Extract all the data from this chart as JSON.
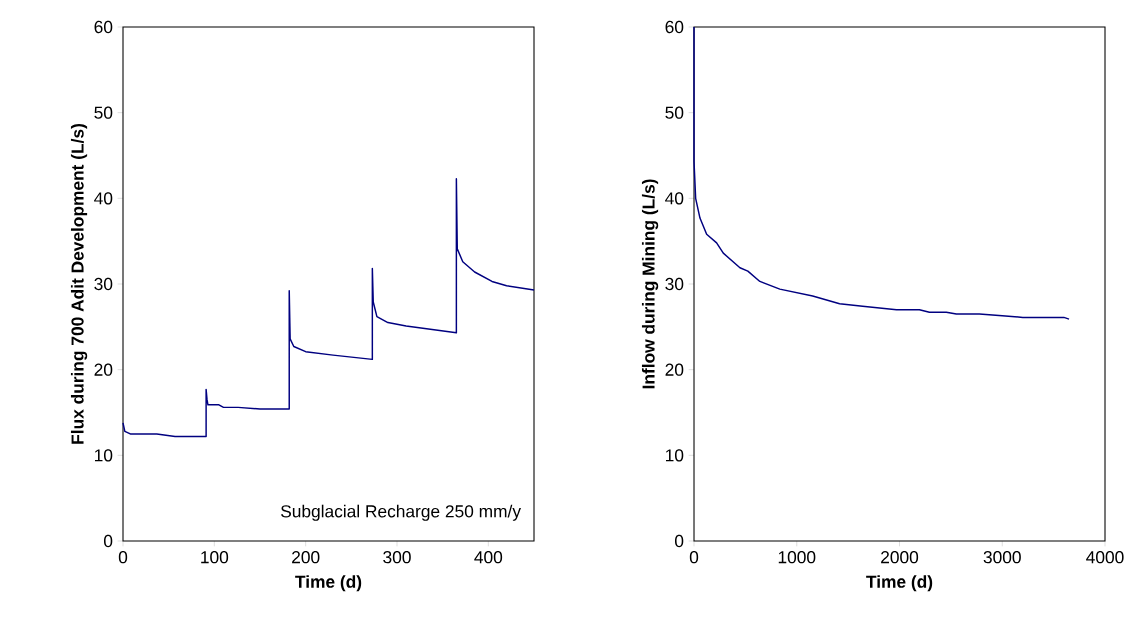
{
  "chart_data": [
    {
      "type": "line",
      "xlabel": "Time (d)",
      "ylabel": "Flux during 700 Adit Development (L/s)",
      "color": "#000080",
      "x": [
        0,
        2,
        8,
        37,
        57,
        91,
        91,
        92,
        93,
        105,
        110,
        126,
        150,
        182,
        182,
        183,
        187,
        200,
        230,
        273,
        273,
        274,
        278,
        290,
        310,
        365,
        365,
        366,
        372,
        385,
        404,
        420,
        450
      ],
      "values": [
        13.8,
        12.8,
        12.5,
        12.5,
        12.2,
        12.2,
        17.7,
        16.5,
        15.9,
        15.9,
        15.6,
        15.6,
        15.4,
        15.4,
        29.2,
        23.6,
        22.7,
        22.1,
        21.7,
        21.2,
        31.8,
        27.9,
        26.2,
        25.5,
        25.1,
        24.3,
        42.3,
        34.1,
        32.6,
        31.4,
        30.3,
        29.8,
        29.3
      ],
      "xlim": [
        0,
        450
      ],
      "ylim": [
        0,
        60
      ],
      "xticks": [
        0,
        100,
        200,
        300,
        400
      ],
      "yticks": [
        0,
        10,
        20,
        30,
        40,
        50,
        60
      ],
      "annotations": [
        "Subglacial Recharge 250 mm/y"
      ]
    },
    {
      "type": "line",
      "xlabel": "Time (d)",
      "ylabel": "Inflow during Mining (L/s)",
      "color": "#000080",
      "x": [
        0,
        0,
        16,
        58,
        123,
        220,
        285,
        447,
        524,
        641,
        835,
        1155,
        1417,
        1641,
        1971,
        2194,
        2291,
        2456,
        2553,
        2777,
        3000,
        3200,
        3600,
        3650
      ],
      "values": [
        60,
        44.3,
        40.0,
        37.7,
        35.8,
        34.8,
        33.6,
        31.9,
        31.5,
        30.3,
        29.4,
        28.6,
        27.7,
        27.4,
        27.0,
        27.0,
        26.7,
        26.7,
        26.5,
        26.5,
        26.3,
        26.1,
        26.1,
        25.9
      ],
      "xlim": [
        0,
        4000
      ],
      "ylim": [
        0,
        60
      ],
      "xticks": [
        0,
        1000,
        2000,
        3000,
        4000
      ],
      "yticks": [
        0,
        10,
        20,
        30,
        40,
        50,
        60
      ]
    }
  ]
}
